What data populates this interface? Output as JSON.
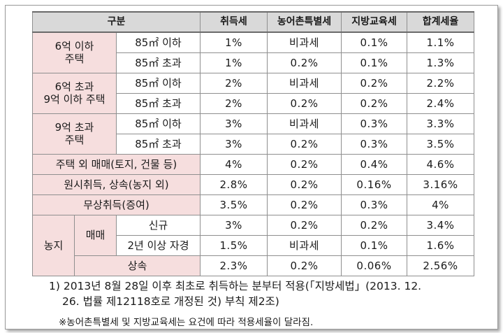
{
  "table": {
    "headers": [
      "구분",
      "취득세",
      "농어촌특별세",
      "지방교육세",
      "합계세율"
    ],
    "groups": {
      "g1": "6억 이하\n주택",
      "g2": "6억 초과\n9억 이하 주택",
      "g3": "9억 초과\n주택",
      "g4": "주택 외 매매(토지, 건물 등)",
      "g5": "원시취득, 상속(농지 외)",
      "g6": "무상취득(증여)",
      "farm": "농지",
      "farm_trade": "매매",
      "farm_inherit": "상속"
    },
    "rows": [
      {
        "sub": "85㎡ 이하",
        "values": [
          "1%",
          "비과세",
          "0.1%",
          "1.1%"
        ]
      },
      {
        "sub": "85㎡ 초과",
        "values": [
          "1%",
          "0.2%",
          "0.1%",
          "1.3%"
        ]
      },
      {
        "sub": "85㎡ 이하",
        "values": [
          "2%",
          "비과세",
          "0.2%",
          "2.2%"
        ]
      },
      {
        "sub": "85㎡ 초과",
        "values": [
          "2%",
          "0.2%",
          "0.2%",
          "2.4%"
        ]
      },
      {
        "sub": "85㎡ 이하",
        "values": [
          "3%",
          "비과세",
          "0.3%",
          "3.3%"
        ]
      },
      {
        "sub": "85㎡ 초과",
        "values": [
          "3%",
          "0.2%",
          "0.3%",
          "3.5%"
        ]
      },
      {
        "sub": "",
        "values": [
          "4%",
          "0.2%",
          "0.4%",
          "4.6%"
        ]
      },
      {
        "sub": "",
        "values": [
          "2.8%",
          "0.2%",
          "0.16%",
          "3.16%"
        ]
      },
      {
        "sub": "",
        "values": [
          "3.5%",
          "0.2%",
          "0.3%",
          "4%"
        ]
      },
      {
        "sub": "신규",
        "values": [
          "3%",
          "0.2%",
          "0.2%",
          "3.4%"
        ]
      },
      {
        "sub": "2년 이상 자경",
        "values": [
          "1.5%",
          "비과세",
          "0.1%",
          "1.6%"
        ]
      },
      {
        "sub": "",
        "values": [
          "2.3%",
          "0.2%",
          "0.06%",
          "2.56%"
        ]
      }
    ]
  },
  "footnote": {
    "line1": "1) 2013년 8월 28일 이후 최초로 취득하는 분부터 적용(「지방세법」(2013. 12.",
    "line2": "26. 법률 제12118호로 개정된 것) 부칙 제2조)"
  },
  "note": "※농어촌특별세 및 지방교육세는 요건에 따라 적용세율이 달라짐."
}
